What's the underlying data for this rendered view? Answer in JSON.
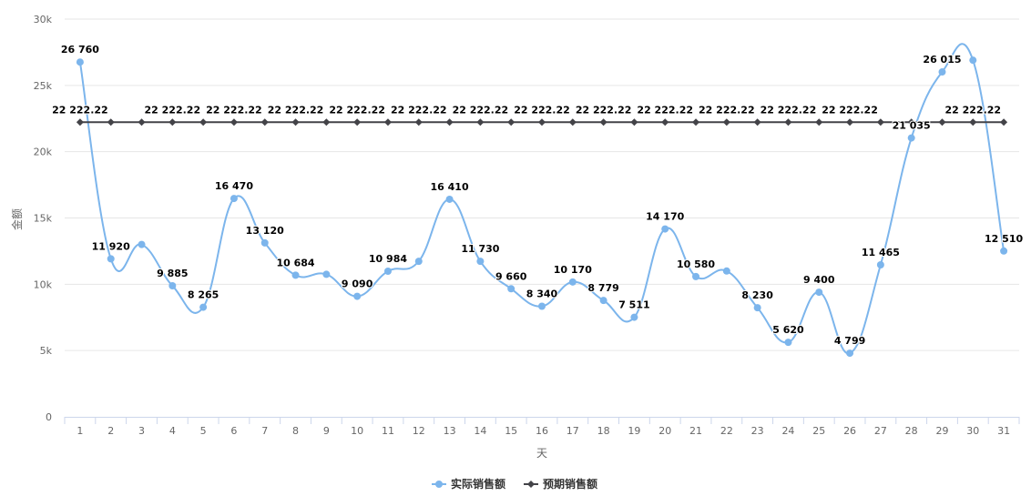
{
  "chart_data": {
    "type": "line",
    "title": "",
    "xlabel": "天",
    "ylabel": "金额",
    "categories": [
      "1",
      "2",
      "3",
      "4",
      "5",
      "6",
      "7",
      "8",
      "9",
      "10",
      "11",
      "12",
      "13",
      "14",
      "15",
      "16",
      "17",
      "18",
      "19",
      "20",
      "21",
      "22",
      "23",
      "24",
      "25",
      "26",
      "27",
      "28",
      "29",
      "30",
      "31"
    ],
    "ylim": [
      0,
      30000
    ],
    "yticks": [
      0,
      5000,
      10000,
      15000,
      20000,
      25000,
      30000
    ],
    "ytick_labels": [
      "0",
      "5k",
      "10k",
      "15k",
      "20k",
      "25k",
      "30k"
    ],
    "grid": true,
    "legend_position": "bottom",
    "series": [
      {
        "name": "实际销售额",
        "color": "#7cb5ec",
        "smooth": true,
        "marker": "circle",
        "values": [
          26760,
          11920,
          13000,
          9885,
          8265,
          16470,
          13120,
          10684,
          10750,
          9090,
          10984,
          11730,
          16410,
          11730,
          9660,
          8340,
          10170,
          8779,
          7511,
          14170,
          10580,
          11000,
          8230,
          5620,
          9400,
          4799,
          11465,
          21035,
          26015,
          26900,
          12510
        ],
        "labels": [
          "26 760",
          "11 920",
          "",
          "9 885",
          "8 265",
          "16 470",
          "13 120",
          "10 684",
          "",
          "9 090",
          "10 984",
          "",
          "16 410",
          "11 730",
          "9 660",
          "8 340",
          "10 170",
          "8 779",
          "7 511",
          "14 170",
          "10 580",
          "",
          "8 230",
          "5 620",
          "9 400",
          "4 799",
          "11 465",
          "21 035",
          "26 015",
          "",
          "12 510"
        ]
      },
      {
        "name": "预期销售额",
        "color": "#434348",
        "smooth": false,
        "marker": "diamond",
        "values": [
          22222.22,
          22222.22,
          22222.22,
          22222.22,
          22222.22,
          22222.22,
          22222.22,
          22222.22,
          22222.22,
          22222.22,
          22222.22,
          22222.22,
          22222.22,
          22222.22,
          22222.22,
          22222.22,
          22222.22,
          22222.22,
          22222.22,
          22222.22,
          22222.22,
          22222.22,
          22222.22,
          22222.22,
          22222.22,
          22222.22,
          22222.22,
          22222.22,
          22222.22,
          22222.22,
          22222.22
        ],
        "labels": [
          "22 222.22",
          "",
          "",
          "22 222.22",
          "",
          "22 222.22",
          "",
          "22 222.22",
          "",
          "22 222.22",
          "",
          "22 222.22",
          "",
          "22 222.22",
          "",
          "22 222.22",
          "",
          "22 222.22",
          "",
          "22 222.22",
          "",
          "22 222.22",
          "",
          "22 222.22",
          "",
          "22 222.22",
          "",
          "",
          "",
          "22 222.22",
          ""
        ]
      }
    ]
  }
}
